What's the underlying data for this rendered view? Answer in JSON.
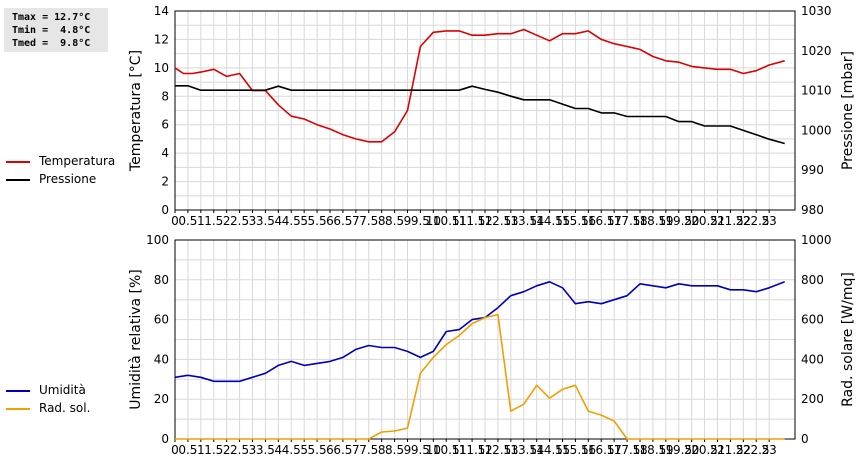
{
  "stats": {
    "tmax": "Tmax = 12.7°C",
    "tmin": "Tmin =  4.8°C",
    "tmed": "Tmed =  9.8°C"
  },
  "chart_data": [
    {
      "type": "line",
      "xlim": [
        0,
        24
      ],
      "xticks": [
        "0",
        "0.5",
        "1",
        "1.5",
        "2",
        "2.5",
        "3",
        "3.5",
        "4",
        "4.5",
        "5",
        "5.5",
        "6",
        "6.5",
        "7",
        "7.5",
        "8",
        "8.5",
        "9",
        "9.5",
        "10",
        "10.5",
        "11",
        "11.5",
        "12",
        "12.5",
        "13",
        "13.5",
        "14",
        "14.5",
        "15",
        "15.5",
        "16",
        "16.5",
        "17",
        "17.5",
        "18",
        "18.5",
        "19",
        "19.5",
        "20",
        "20.5",
        "21",
        "21.5",
        "22",
        "22.5",
        "23"
      ],
      "ylabel": "Temperatura [°C]",
      "ylim": [
        0,
        14
      ],
      "yticks": [
        0,
        2,
        4,
        6,
        8,
        10,
        12,
        14
      ],
      "y2label": "Pressione [mbar]",
      "y2lim": [
        980,
        1030
      ],
      "y2ticks": [
        980,
        990,
        1000,
        1010,
        1020,
        1030
      ],
      "grid": true,
      "legend_position": "left",
      "series": [
        {
          "name": "Temperatura",
          "color": "#dd0000",
          "axis": "left",
          "points": [
            [
              0,
              10.0
            ],
            [
              0.33,
              9.6
            ],
            [
              0.67,
              9.6
            ],
            [
              1,
              9.7
            ],
            [
              1.5,
              9.9
            ],
            [
              2,
              9.4
            ],
            [
              2.5,
              9.6
            ],
            [
              3,
              8.4
            ],
            [
              3.5,
              8.4
            ],
            [
              4,
              7.4
            ],
            [
              4.5,
              6.6
            ],
            [
              5,
              6.4
            ],
            [
              5.5,
              6.0
            ],
            [
              6,
              5.7
            ],
            [
              6.5,
              5.3
            ],
            [
              7,
              5.0
            ],
            [
              7.5,
              4.8
            ],
            [
              8,
              4.8
            ],
            [
              8.5,
              5.5
            ],
            [
              9,
              7.0
            ],
            [
              9.5,
              11.5
            ],
            [
              10,
              12.5
            ],
            [
              10.5,
              12.6
            ],
            [
              11,
              12.6
            ],
            [
              11.5,
              12.3
            ],
            [
              12,
              12.3
            ],
            [
              12.5,
              12.4
            ],
            [
              13,
              12.4
            ],
            [
              13.5,
              12.7
            ],
            [
              14,
              12.3
            ],
            [
              14.5,
              11.9
            ],
            [
              15,
              12.4
            ],
            [
              15.5,
              12.4
            ],
            [
              16,
              12.6
            ],
            [
              16.5,
              12.0
            ],
            [
              17,
              11.7
            ],
            [
              17.5,
              11.5
            ],
            [
              18,
              11.3
            ],
            [
              18.5,
              10.8
            ],
            [
              19,
              10.5
            ],
            [
              19.5,
              10.4
            ],
            [
              20,
              10.1
            ],
            [
              20.5,
              10.0
            ],
            [
              21,
              9.9
            ],
            [
              21.5,
              9.9
            ],
            [
              22,
              9.6
            ],
            [
              22.5,
              9.8
            ],
            [
              23,
              10.2
            ],
            [
              23.6,
              10.5
            ]
          ]
        },
        {
          "name": "Pressione",
          "color": "#000000",
          "axis": "right",
          "points": [
            [
              0,
              1011.2
            ],
            [
              0.5,
              1011.2
            ],
            [
              1,
              1010.1
            ],
            [
              1.5,
              1010.1
            ],
            [
              2,
              1010.1
            ],
            [
              2.5,
              1010.1
            ],
            [
              3,
              1010.1
            ],
            [
              3.5,
              1010.1
            ],
            [
              4,
              1011.1
            ],
            [
              4.5,
              1010.1
            ],
            [
              5,
              1010.1
            ],
            [
              6,
              1010.1
            ],
            [
              7,
              1010.1
            ],
            [
              8,
              1010.1
            ],
            [
              9,
              1010.1
            ],
            [
              10,
              1010.1
            ],
            [
              11,
              1010.1
            ],
            [
              11.5,
              1011.1
            ],
            [
              12,
              1010.3
            ],
            [
              12.5,
              1009.6
            ],
            [
              13,
              1008.6
            ],
            [
              13.5,
              1007.7
            ],
            [
              14,
              1007.7
            ],
            [
              14.5,
              1007.7
            ],
            [
              15,
              1006.6
            ],
            [
              15.5,
              1005.5
            ],
            [
              16,
              1005.5
            ],
            [
              16.5,
              1004.4
            ],
            [
              17,
              1004.4
            ],
            [
              17.5,
              1003.5
            ],
            [
              18,
              1003.5
            ],
            [
              18.5,
              1003.5
            ],
            [
              19,
              1003.5
            ],
            [
              19.5,
              1002.2
            ],
            [
              20,
              1002.2
            ],
            [
              20.5,
              1001.1
            ],
            [
              21,
              1001.1
            ],
            [
              21.5,
              1001.1
            ],
            [
              22,
              1000.0
            ],
            [
              22.5,
              998.9
            ],
            [
              23,
              997.8
            ],
            [
              23.6,
              996.7
            ]
          ]
        }
      ]
    },
    {
      "type": "line",
      "xlim": [
        0,
        24
      ],
      "xticks": [
        "0",
        "0.5",
        "1",
        "1.5",
        "2",
        "2.5",
        "3",
        "3.5",
        "4",
        "4.5",
        "5",
        "5.5",
        "6",
        "6.5",
        "7",
        "7.5",
        "8",
        "8.5",
        "9",
        "9.5",
        "10",
        "10.5",
        "11",
        "11.5",
        "12",
        "12.5",
        "13",
        "13.5",
        "14",
        "14.5",
        "15",
        "15.5",
        "16",
        "16.5",
        "17",
        "17.5",
        "18",
        "18.5",
        "19",
        "19.5",
        "20",
        "20.5",
        "21",
        "21.5",
        "22",
        "22.5",
        "23"
      ],
      "ylabel": "Umidità relativa [%]",
      "ylim": [
        0,
        100
      ],
      "yticks": [
        0,
        20,
        40,
        60,
        80,
        100
      ],
      "y2label": "Rad. solare [W/mq]",
      "y2lim": [
        0,
        1000
      ],
      "y2ticks": [
        0,
        200,
        400,
        600,
        800,
        1000
      ],
      "grid": true,
      "legend_position": "left",
      "series": [
        {
          "name": "Umidità",
          "color": "#0000bb",
          "axis": "left",
          "points": [
            [
              0,
              31
            ],
            [
              0.5,
              32
            ],
            [
              1,
              31
            ],
            [
              1.5,
              29
            ],
            [
              2,
              29
            ],
            [
              2.5,
              29
            ],
            [
              3,
              31
            ],
            [
              3.5,
              33
            ],
            [
              4,
              37
            ],
            [
              4.5,
              39
            ],
            [
              5,
              37
            ],
            [
              5.5,
              38
            ],
            [
              6,
              39
            ],
            [
              6.5,
              41
            ],
            [
              7,
              45
            ],
            [
              7.5,
              47
            ],
            [
              8,
              46
            ],
            [
              8.5,
              46
            ],
            [
              9,
              44
            ],
            [
              9.5,
              41
            ],
            [
              10,
              44
            ],
            [
              10.5,
              54
            ],
            [
              11,
              55
            ],
            [
              11.5,
              60
            ],
            [
              12,
              61
            ],
            [
              12.5,
              66
            ],
            [
              13,
              72
            ],
            [
              13.5,
              74
            ],
            [
              14,
              77
            ],
            [
              14.5,
              79
            ],
            [
              15,
              76
            ],
            [
              15.5,
              68
            ],
            [
              16,
              69
            ],
            [
              16.5,
              68
            ],
            [
              17,
              70
            ],
            [
              17.5,
              72
            ],
            [
              18,
              78
            ],
            [
              18.5,
              77
            ],
            [
              19,
              76
            ],
            [
              19.5,
              78
            ],
            [
              20,
              77
            ],
            [
              20.5,
              77
            ],
            [
              21,
              77
            ],
            [
              21.5,
              75
            ],
            [
              22,
              75
            ],
            [
              22.5,
              74
            ],
            [
              23,
              76
            ],
            [
              23.6,
              79
            ]
          ]
        },
        {
          "name": "Rad. sol.",
          "color": "#f0a000",
          "axis": "right",
          "points": [
            [
              0,
              0
            ],
            [
              1,
              0
            ],
            [
              2,
              0
            ],
            [
              3,
              0
            ],
            [
              4,
              0
            ],
            [
              5,
              0
            ],
            [
              6,
              0
            ],
            [
              7,
              0
            ],
            [
              7.5,
              0
            ],
            [
              8,
              35
            ],
            [
              8.5,
              40
            ],
            [
              9,
              55
            ],
            [
              9.5,
              330
            ],
            [
              10,
              410
            ],
            [
              10.5,
              475
            ],
            [
              11,
              520
            ],
            [
              11.5,
              580
            ],
            [
              12,
              610
            ],
            [
              12.5,
              625
            ],
            [
              13,
              140
            ],
            [
              13.5,
              175
            ],
            [
              14,
              270
            ],
            [
              14.5,
              205
            ],
            [
              15,
              250
            ],
            [
              15.5,
              270
            ],
            [
              16,
              140
            ],
            [
              16.5,
              120
            ],
            [
              17,
              90
            ],
            [
              17.5,
              0
            ],
            [
              18,
              0
            ],
            [
              19,
              0
            ],
            [
              20,
              0
            ],
            [
              21,
              0
            ],
            [
              22,
              0
            ],
            [
              23,
              0
            ],
            [
              23.6,
              0
            ]
          ]
        }
      ]
    }
  ]
}
